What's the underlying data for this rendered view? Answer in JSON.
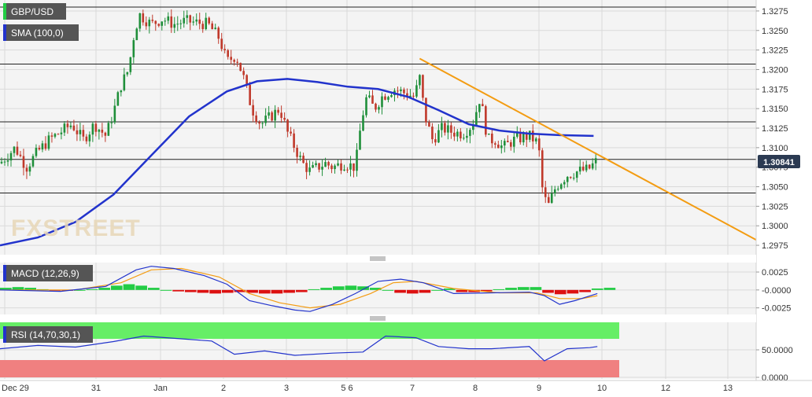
{
  "colors": {
    "background": "#ffffff",
    "panel_bg": "#f4f4f4",
    "grid": "#dadada",
    "candle_up": "#1f8f3a",
    "candle_down": "#c0392b",
    "sma": "#2233cc",
    "trendline": "#f39c12",
    "macd_line": "#2233cc",
    "signal_line": "#f39c12",
    "hist_pos": "#22cc44",
    "hist_neg": "#dd1111",
    "rsi_line": "#2233cc",
    "rsi_overbought_zone": "#66ee66",
    "rsi_oversold_zone": "#f08080",
    "price_tag_bg": "#2b3a52",
    "legend_bg": "#555555"
  },
  "watermark": "FXSTREET",
  "chart_data": [
    {
      "type": "candlestick",
      "panel": "price",
      "symbol": "GBP/USD",
      "indicator_label": "SMA (100,0)",
      "current_price_label": "1.30841",
      "ylim": [
        1.2965,
        1.3285
      ],
      "y_ticks": [
        "1.2975",
        "1.3000",
        "1.3025",
        "1.3050",
        "1.3075",
        "1.3100",
        "1.3125",
        "1.3150",
        "1.3175",
        "1.3200",
        "1.3225",
        "1.3250",
        "1.3275"
      ],
      "x_ticks": [
        "Dec 29",
        "31",
        "Jan",
        "2",
        "3",
        "5 6",
        "7",
        "8",
        "9",
        "10",
        "12",
        "13"
      ],
      "grid": true,
      "horizontal_levels": [
        1.328,
        1.3207,
        1.3133,
        1.3085,
        1.3042
      ],
      "trendline": {
        "from": [
          0.555,
          1.3214
        ],
        "to": [
          1.0,
          1.2982
        ]
      },
      "close_path": [
        [
          0.0,
          1.308
        ],
        [
          0.02,
          1.31
        ],
        [
          0.035,
          1.3075
        ],
        [
          0.05,
          1.3095
        ],
        [
          0.065,
          1.311
        ],
        [
          0.08,
          1.312
        ],
        [
          0.095,
          1.313
        ],
        [
          0.11,
          1.311
        ],
        [
          0.125,
          1.313
        ],
        [
          0.14,
          1.3115
        ],
        [
          0.15,
          1.3145
        ],
        [
          0.16,
          1.318
        ],
        [
          0.17,
          1.32
        ],
        [
          0.178,
          1.325
        ],
        [
          0.185,
          1.327
        ],
        [
          0.2,
          1.3258
        ],
        [
          0.215,
          1.3265
        ],
        [
          0.23,
          1.3258
        ],
        [
          0.245,
          1.3262
        ],
        [
          0.26,
          1.326
        ],
        [
          0.275,
          1.3258
        ],
        [
          0.29,
          1.324
        ],
        [
          0.3,
          1.321
        ],
        [
          0.312,
          1.3218
        ],
        [
          0.322,
          1.319
        ],
        [
          0.333,
          1.315
        ],
        [
          0.345,
          1.313
        ],
        [
          0.358,
          1.314
        ],
        [
          0.37,
          1.315
        ],
        [
          0.38,
          1.312
        ],
        [
          0.39,
          1.31
        ],
        [
          0.4,
          1.308
        ],
        [
          0.41,
          1.307
        ],
        [
          0.42,
          1.3075
        ],
        [
          0.43,
          1.308
        ],
        [
          0.44,
          1.3075
        ],
        [
          0.455,
          1.308
        ],
        [
          0.47,
          1.3075
        ],
        [
          0.478,
          1.3135
        ],
        [
          0.485,
          1.3165
        ],
        [
          0.495,
          1.315
        ],
        [
          0.505,
          1.3165
        ],
        [
          0.52,
          1.3175
        ],
        [
          0.535,
          1.317
        ],
        [
          0.548,
          1.3165
        ],
        [
          0.555,
          1.319
        ],
        [
          0.562,
          1.314
        ],
        [
          0.572,
          1.311
        ],
        [
          0.585,
          1.3125
        ],
        [
          0.598,
          1.312
        ],
        [
          0.612,
          1.3118
        ],
        [
          0.625,
          1.313
        ],
        [
          0.635,
          1.3165
        ],
        [
          0.645,
          1.311
        ],
        [
          0.655,
          1.311
        ],
        [
          0.665,
          1.31
        ],
        [
          0.68,
          1.311
        ],
        [
          0.7,
          1.3115
        ],
        [
          0.712,
          1.3105
        ],
        [
          0.718,
          1.304
        ],
        [
          0.725,
          1.3025
        ],
        [
          0.735,
          1.305
        ],
        [
          0.75,
          1.3065
        ],
        [
          0.765,
          1.307
        ],
        [
          0.778,
          1.3072
        ],
        [
          0.79,
          1.3084
        ]
      ],
      "sma_path": [
        [
          0.0,
          1.2975
        ],
        [
          0.05,
          1.2985
        ],
        [
          0.1,
          1.3005
        ],
        [
          0.15,
          1.304
        ],
        [
          0.2,
          1.309
        ],
        [
          0.25,
          1.314
        ],
        [
          0.3,
          1.3172
        ],
        [
          0.34,
          1.3185
        ],
        [
          0.38,
          1.3188
        ],
        [
          0.42,
          1.3184
        ],
        [
          0.46,
          1.3178
        ],
        [
          0.5,
          1.3175
        ],
        [
          0.54,
          1.3165
        ],
        [
          0.58,
          1.3148
        ],
        [
          0.62,
          1.313
        ],
        [
          0.66,
          1.3122
        ],
        [
          0.7,
          1.3118
        ],
        [
          0.74,
          1.3116
        ],
        [
          0.785,
          1.3115
        ]
      ]
    },
    {
      "type": "line",
      "panel": "macd",
      "indicator_label": "MACD (12,26,9)",
      "ylim": [
        -0.0032,
        0.0036
      ],
      "y_ticks": [
        "0.0025",
        "-0.0000",
        "-0.0025"
      ],
      "series": [
        {
          "name": "MACD",
          "values": [
            [
              0.0,
              0.0
            ],
            [
              0.08,
              -0.0002
            ],
            [
              0.14,
              0.0005
            ],
            [
              0.18,
              0.0028
            ],
            [
              0.2,
              0.0033
            ],
            [
              0.23,
              0.003
            ],
            [
              0.27,
              0.002
            ],
            [
              0.3,
              0.0008
            ],
            [
              0.33,
              -0.0015
            ],
            [
              0.36,
              -0.0022
            ],
            [
              0.39,
              -0.0028
            ],
            [
              0.41,
              -0.003
            ],
            [
              0.44,
              -0.002
            ],
            [
              0.47,
              -0.0005
            ],
            [
              0.5,
              0.0012
            ],
            [
              0.53,
              0.0015
            ],
            [
              0.56,
              0.001
            ],
            [
              0.6,
              -0.0005
            ],
            [
              0.65,
              -0.0004
            ],
            [
              0.7,
              -0.0003
            ],
            [
              0.72,
              -0.0008
            ],
            [
              0.74,
              -0.002
            ],
            [
              0.76,
              -0.0015
            ],
            [
              0.79,
              -0.0005
            ]
          ]
        },
        {
          "name": "Signal",
          "values": [
            [
              0.0,
              0.0
            ],
            [
              0.1,
              0.0
            ],
            [
              0.16,
              0.001
            ],
            [
              0.2,
              0.0028
            ],
            [
              0.24,
              0.003
            ],
            [
              0.29,
              0.0018
            ],
            [
              0.33,
              -0.0005
            ],
            [
              0.37,
              -0.0018
            ],
            [
              0.41,
              -0.0025
            ],
            [
              0.45,
              -0.002
            ],
            [
              0.49,
              -0.0005
            ],
            [
              0.52,
              0.001
            ],
            [
              0.55,
              0.0012
            ],
            [
              0.6,
              0.0002
            ],
            [
              0.66,
              -0.0004
            ],
            [
              0.71,
              -0.0004
            ],
            [
              0.74,
              -0.0012
            ],
            [
              0.77,
              -0.0012
            ],
            [
              0.79,
              -0.0008
            ]
          ]
        }
      ],
      "histogram": [
        0.0003,
        0.0004,
        0.0003,
        0.0001,
        -0.0001,
        -0.0001,
        0.0,
        0.0001,
        0.0003,
        0.0006,
        0.0008,
        0.0006,
        0.0003,
        0.0,
        -0.0002,
        -0.0003,
        -0.0004,
        -0.0005,
        -0.0004,
        -0.0003,
        -0.0004,
        -0.0005,
        -0.0005,
        -0.0004,
        -0.0003,
        0.0001,
        0.0003,
        0.0005,
        0.0006,
        0.0005,
        0.0003,
        0.0,
        -0.0004,
        -0.0005,
        -0.0004,
        0.0,
        0.0002,
        -0.0003,
        -0.0003,
        -0.0002,
        0.0001,
        0.0003,
        0.0004,
        0.0004,
        -0.0004,
        -0.0006,
        -0.0005,
        -0.0003,
        0.0002,
        0.0003
      ]
    },
    {
      "type": "line",
      "panel": "rsi",
      "indicator_label": "RSI (14,70,30,1)",
      "ylim": [
        0,
        100
      ],
      "y_ticks": [
        "50.0000",
        "0.0000"
      ],
      "overbought": 70,
      "oversold": 30,
      "series": [
        {
          "name": "RSI",
          "values": [
            [
              0.0,
              52
            ],
            [
              0.05,
              58
            ],
            [
              0.1,
              55
            ],
            [
              0.15,
              65
            ],
            [
              0.19,
              75
            ],
            [
              0.24,
              70
            ],
            [
              0.28,
              66
            ],
            [
              0.31,
              42
            ],
            [
              0.35,
              48
            ],
            [
              0.39,
              40
            ],
            [
              0.44,
              44
            ],
            [
              0.48,
              46
            ],
            [
              0.51,
              75
            ],
            [
              0.55,
              72
            ],
            [
              0.58,
              56
            ],
            [
              0.62,
              52
            ],
            [
              0.65,
              52
            ],
            [
              0.7,
              56
            ],
            [
              0.72,
              30
            ],
            [
              0.75,
              52
            ],
            [
              0.78,
              54
            ],
            [
              0.79,
              56
            ]
          ]
        }
      ]
    }
  ]
}
